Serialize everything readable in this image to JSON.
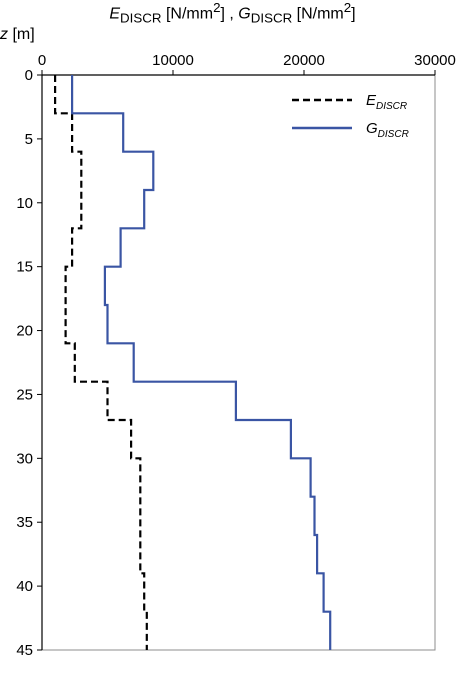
{
  "chart_data": {
    "type": "line",
    "step": true,
    "orientation": "depth-profile",
    "x_title": {
      "e_symbol": "E",
      "e_sub": "DISCR",
      "e_unit": " [N/mm",
      "e_unit_exp": "2",
      "e_unit_close": "]",
      "separator": " , ",
      "g_symbol": "G",
      "g_sub": "DISCR",
      "g_unit": " [N/mm",
      "g_unit_exp": "2",
      "g_unit_close": "]"
    },
    "y_title": {
      "symbol": "z",
      "unit": " [m]"
    },
    "x_axis": {
      "position": "top",
      "min": 0,
      "max": 30000,
      "ticks": [
        0,
        10000,
        20000,
        30000
      ]
    },
    "y_axis": {
      "inverted": true,
      "min": 0,
      "max": 45,
      "ticks": [
        0,
        5,
        10,
        15,
        20,
        25,
        30,
        35,
        40,
        45
      ]
    },
    "grid": false,
    "legend": {
      "placement": "top-right"
    },
    "series": [
      {
        "name": "E_DISCR",
        "symbol": "E",
        "sub": "DISCR",
        "color": "#000000",
        "dash": "dashed",
        "steps": [
          {
            "from": 0,
            "to": 3,
            "value": 1000
          },
          {
            "from": 3,
            "to": 6,
            "value": 2300
          },
          {
            "from": 6,
            "to": 12,
            "value": 3000
          },
          {
            "from": 12,
            "to": 15,
            "value": 2300
          },
          {
            "from": 15,
            "to": 21,
            "value": 1800
          },
          {
            "from": 21,
            "to": 24,
            "value": 2500
          },
          {
            "from": 24,
            "to": 27,
            "value": 5000
          },
          {
            "from": 27,
            "to": 30,
            "value": 6800
          },
          {
            "from": 30,
            "to": 39,
            "value": 7500
          },
          {
            "from": 39,
            "to": 42,
            "value": 7800
          },
          {
            "from": 42,
            "to": 45,
            "value": 8000
          }
        ]
      },
      {
        "name": "G_DISCR",
        "symbol": "G",
        "sub": "DISCR",
        "color": "#3a55a4",
        "dash": "solid",
        "steps": [
          {
            "from": 0,
            "to": 3,
            "value": 2300
          },
          {
            "from": 3,
            "to": 6,
            "value": 6200
          },
          {
            "from": 6,
            "to": 9,
            "value": 8500
          },
          {
            "from": 9,
            "to": 12,
            "value": 7800
          },
          {
            "from": 12,
            "to": 15,
            "value": 6000
          },
          {
            "from": 15,
            "to": 18,
            "value": 4800
          },
          {
            "from": 18,
            "to": 21,
            "value": 5000
          },
          {
            "from": 21,
            "to": 24,
            "value": 7000
          },
          {
            "from": 24,
            "to": 27,
            "value": 14800
          },
          {
            "from": 27,
            "to": 30,
            "value": 19000
          },
          {
            "from": 30,
            "to": 33,
            "value": 20500
          },
          {
            "from": 33,
            "to": 36,
            "value": 20800
          },
          {
            "from": 36,
            "to": 39,
            "value": 21000
          },
          {
            "from": 39,
            "to": 42,
            "value": 21500
          },
          {
            "from": 42,
            "to": 45,
            "value": 22000
          }
        ]
      }
    ]
  }
}
